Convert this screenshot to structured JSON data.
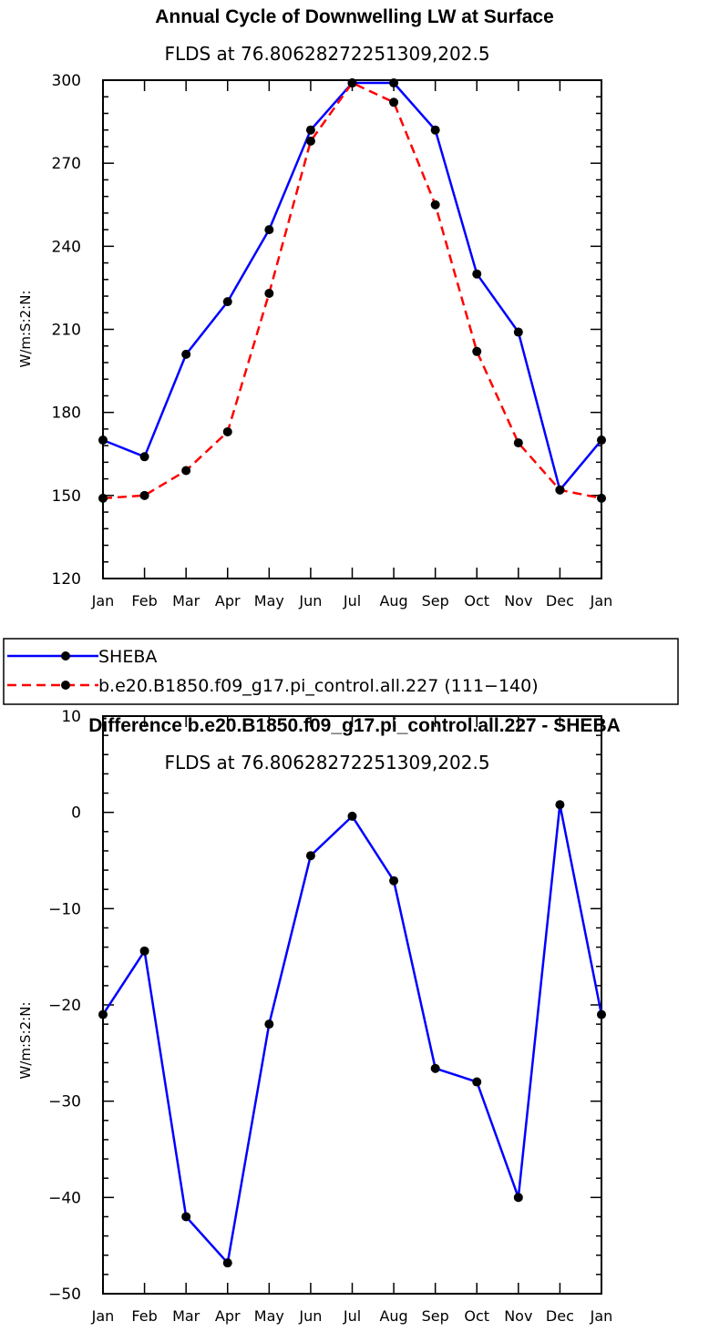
{
  "chart_data": [
    {
      "type": "line",
      "title": "Annual Cycle of Downwelling LW at Surface",
      "subtitle": "FLDS at 76.80628272251309,202.5",
      "xlabel": "",
      "ylabel": "W/m:S:2:N:",
      "categories": [
        "Jan",
        "Feb",
        "Mar",
        "Apr",
        "May",
        "Jun",
        "Jul",
        "Aug",
        "Sep",
        "Oct",
        "Nov",
        "Dec",
        "Jan"
      ],
      "ylim": [
        120,
        300
      ],
      "yticks": [
        120,
        150,
        180,
        210,
        240,
        270,
        300
      ],
      "series": [
        {
          "name": "SHEBA",
          "color": "#0000ff",
          "dash": "solid",
          "values": [
            170,
            164,
            201,
            220,
            246,
            282,
            299,
            299,
            282,
            230,
            209,
            152,
            170
          ]
        },
        {
          "name": "b.e20.B1850.f09_g17.pi_control.all.227 (111−140)",
          "color": "#ff0000",
          "dash": "dashed",
          "values": [
            149,
            150,
            159,
            173,
            223,
            278,
            299,
            292,
            255,
            202,
            169,
            152,
            149
          ]
        }
      ],
      "legend": "below"
    },
    {
      "type": "line",
      "title": "Difference b.e20.B1850.f09_g17.pi_control.all.227 - SHEBA",
      "subtitle": "FLDS at 76.80628272251309,202.5",
      "xlabel": "",
      "ylabel": "W/m:S:2:N:",
      "categories": [
        "Jan",
        "Feb",
        "Mar",
        "Apr",
        "May",
        "Jun",
        "Jul",
        "Aug",
        "Sep",
        "Oct",
        "Nov",
        "Dec",
        "Jan"
      ],
      "ylim": [
        -50,
        10
      ],
      "yticks": [
        -50,
        -40,
        -30,
        -20,
        -10,
        0,
        10
      ],
      "series": [
        {
          "name": "Difference",
          "color": "#0000ff",
          "dash": "solid",
          "values": [
            -21,
            -14.4,
            -42,
            -46.8,
            -22,
            -4.5,
            -0.4,
            -7.1,
            -26.6,
            -28,
            -40,
            0.8,
            -21
          ]
        }
      ]
    }
  ]
}
